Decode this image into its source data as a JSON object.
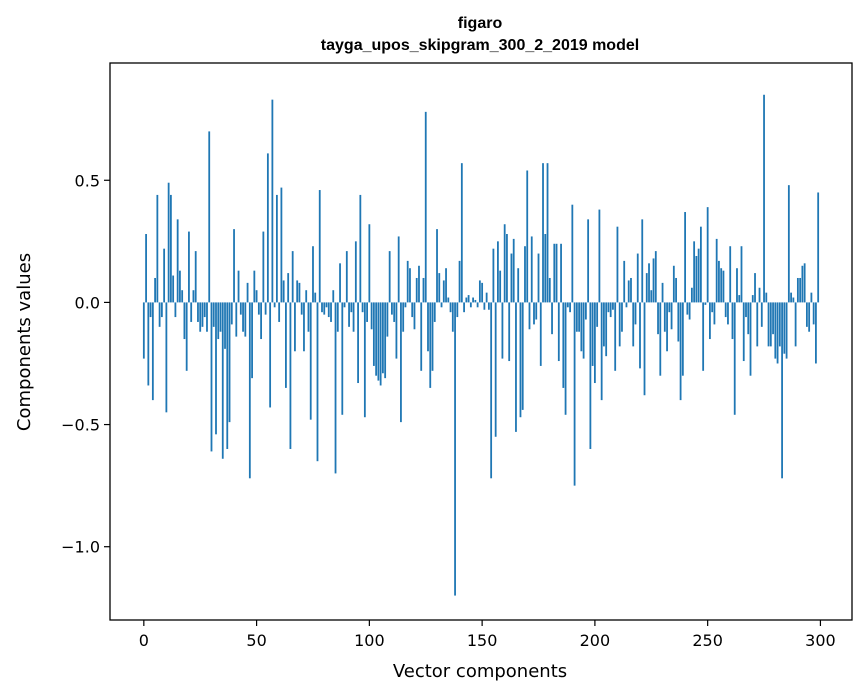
{
  "chart_data": {
    "type": "bar",
    "title": "figaro",
    "subtitle": "tayga_upos_skipgram_300_2_2019 model",
    "xlabel": "Vector components",
    "ylabel": "Components values",
    "xlim": [
      -15,
      314
    ],
    "ylim": [
      -1.3,
      0.98
    ],
    "xticks": [
      0,
      50,
      100,
      150,
      200,
      250,
      300
    ],
    "yticks": [
      -1.0,
      -0.5,
      0.0,
      0.5
    ],
    "ytick_labels": [
      "−1.0",
      "−0.5",
      "0.0",
      "0.5"
    ],
    "grid": false,
    "color": "#1f77b4",
    "values": [
      -0.23,
      0.28,
      -0.34,
      -0.06,
      -0.4,
      0.1,
      0.44,
      -0.1,
      -0.06,
      0.22,
      -0.45,
      0.49,
      0.44,
      0.11,
      -0.06,
      0.34,
      0.13,
      0.05,
      -0.15,
      -0.28,
      0.29,
      -0.08,
      0.05,
      0.21,
      -0.08,
      -0.12,
      -0.1,
      -0.06,
      -0.12,
      0.7,
      -0.61,
      -0.1,
      -0.54,
      -0.15,
      -0.12,
      -0.64,
      -0.19,
      -0.6,
      -0.49,
      -0.09,
      0.3,
      -0.14,
      0.13,
      -0.05,
      -0.12,
      -0.14,
      0.08,
      -0.72,
      -0.31,
      0.13,
      0.05,
      -0.05,
      -0.15,
      0.29,
      -0.05,
      0.61,
      -0.43,
      0.83,
      -0.02,
      0.44,
      -0.08,
      0.47,
      0.09,
      -0.35,
      0.12,
      -0.6,
      0.21,
      -0.2,
      0.09,
      0.08,
      -0.05,
      -0.2,
      0.05,
      -0.12,
      -0.48,
      0.23,
      0.04,
      -0.65,
      0.46,
      -0.04,
      -0.05,
      -0.02,
      -0.06,
      -0.08,
      0.05,
      -0.7,
      -0.12,
      0.16,
      -0.46,
      -0.02,
      0.21,
      -0.1,
      -0.04,
      -0.12,
      0.25,
      -0.33,
      0.44,
      -0.04,
      -0.47,
      -0.08,
      0.32,
      -0.11,
      -0.26,
      -0.3,
      -0.32,
      -0.34,
      -0.29,
      -0.31,
      -0.14,
      0.21,
      -0.05,
      -0.08,
      -0.23,
      0.27,
      -0.49,
      -0.12,
      -0.02,
      0.17,
      0.14,
      -0.06,
      -0.11,
      0.1,
      0.15,
      -0.28,
      0.1,
      0.78,
      -0.2,
      -0.35,
      -0.28,
      -0.08,
      0.3,
      0.12,
      -0.02,
      0.09,
      0.14,
      0.02,
      -0.04,
      -0.12,
      -1.2,
      -0.06,
      0.17,
      0.57,
      -0.04,
      0.02,
      0.03,
      -0.02,
      0.02,
      0.01,
      -0.02,
      0.09,
      0.08,
      -0.03,
      0.04,
      -0.03,
      -0.72,
      0.22,
      -0.55,
      0.25,
      0.13,
      -0.23,
      0.32,
      0.28,
      -0.24,
      0.2,
      0.26,
      -0.53,
      0.14,
      -0.47,
      -0.44,
      0.23,
      0.54,
      -0.11,
      0.27,
      -0.09,
      -0.07,
      0.2,
      -0.26,
      0.57,
      0.28,
      0.57,
      0.1,
      -0.13,
      0.24,
      0.24,
      -0.24,
      0.24,
      -0.35,
      -0.46,
      -0.02,
      -0.04,
      0.4,
      -0.75,
      -0.12,
      -0.12,
      -0.2,
      -0.23,
      -0.07,
      0.34,
      -0.6,
      -0.26,
      -0.33,
      -0.1,
      0.38,
      -0.4,
      -0.18,
      -0.22,
      -0.04,
      -0.06,
      -0.03,
      -0.28,
      0.31,
      -0.18,
      -0.12,
      0.17,
      -0.02,
      0.09,
      0.1,
      -0.18,
      -0.09,
      0.2,
      -0.27,
      0.34,
      -0.38,
      0.12,
      0.16,
      0.05,
      0.18,
      0.21,
      -0.13,
      -0.3,
      0.08,
      -0.12,
      -0.2,
      -0.04,
      -0.11,
      0.15,
      0.1,
      -0.16,
      -0.4,
      -0.3,
      0.37,
      -0.05,
      -0.07,
      0.06,
      0.25,
      0.19,
      0.22,
      0.31,
      -0.28,
      -0.01,
      0.39,
      -0.15,
      -0.04,
      -0.09,
      0.26,
      0.17,
      0.14,
      0.13,
      -0.06,
      -0.09,
      0.23,
      -0.15,
      -0.46,
      0.14,
      0.03,
      0.23,
      -0.24,
      -0.06,
      -0.13,
      -0.3,
      0.03,
      0.12,
      -0.18,
      0.06,
      -0.1,
      0.85,
      0.04,
      -0.18,
      -0.18,
      -0.13,
      -0.23,
      -0.25,
      -0.18,
      -0.72,
      -0.21,
      -0.23,
      0.48,
      0.04,
      0.02,
      -0.18,
      0.1,
      0.1,
      0.15,
      0.16,
      -0.1,
      -0.12,
      0.04,
      -0.09,
      -0.25,
      0.45
    ]
  }
}
